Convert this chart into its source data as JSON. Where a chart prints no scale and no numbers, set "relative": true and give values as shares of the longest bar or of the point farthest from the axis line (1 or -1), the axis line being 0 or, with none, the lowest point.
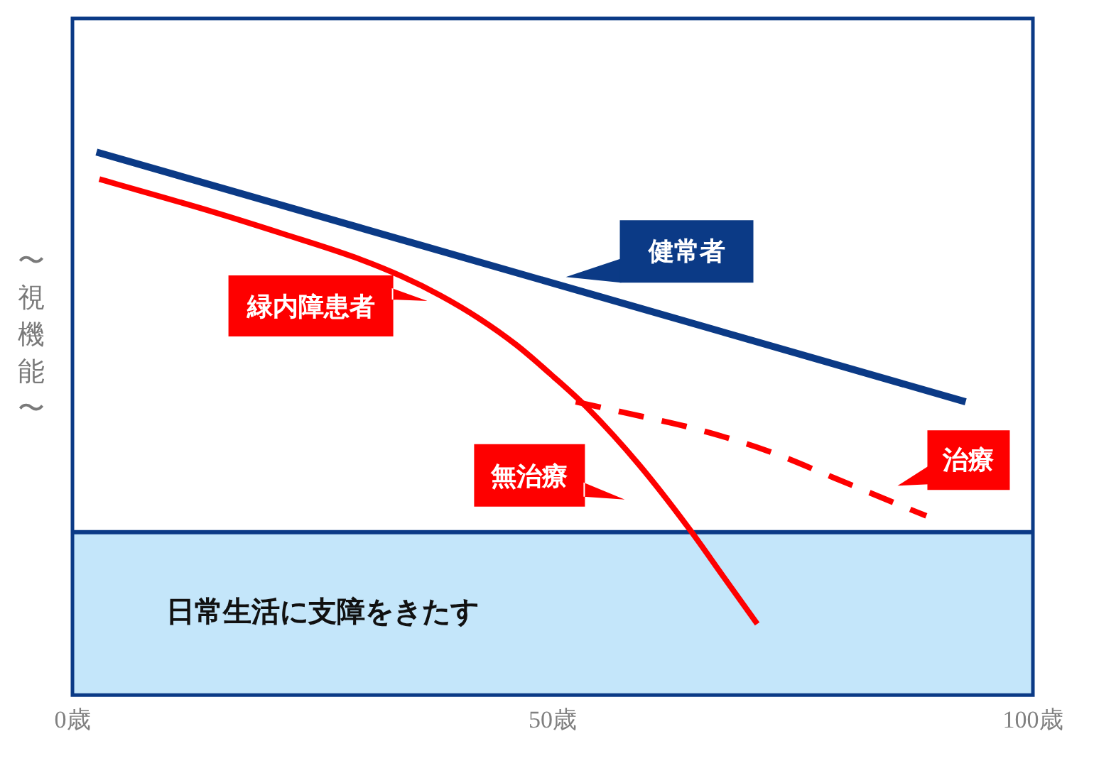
{
  "chart_data": {
    "type": "line",
    "ylabel": "〜視機能〜",
    "relative": true,
    "xlim": [
      0,
      100
    ],
    "xticks": [
      {
        "value": 0,
        "label": "0歳"
      },
      {
        "value": 50,
        "label": "50歳"
      },
      {
        "value": 100,
        "label": "100歳"
      }
    ],
    "series": [
      {
        "name": "健常者",
        "color": "#0b3a86",
        "x": [
          2.5,
          93.0
        ],
        "values": [
          1,
          0.54
        ]
      },
      {
        "name": "緑内障患者",
        "color": "#fe0000",
        "x": [
          2.8,
          14.6,
          22.0,
          29.4,
          34.3,
          38.3,
          42.3,
          46.2,
          50.1,
          53.6,
          59.0,
          64.1,
          67.9,
          71.3
        ],
        "values": [
          0.95,
          0.89,
          0.849,
          0.806,
          0.771,
          0.736,
          0.694,
          0.645,
          0.586,
          0.529,
          0.424,
          0.309,
          0.215,
          0.131
        ]
      },
      {
        "name": "治療",
        "color": "#fe0000",
        "line_style": "dashed",
        "x": [
          52.4,
          57.5,
          64.9,
          72.3,
          79.3,
          86.1,
          88.9
        ],
        "values": [
          0.54,
          0.52,
          0.49,
          0.45,
          0.4,
          0.35,
          0.33
        ]
      }
    ],
    "bands": [
      {
        "axis": "y",
        "from": 0,
        "to": 0.3,
        "label": "日常生活に支障をきたす",
        "color": "#c4e6fa"
      }
    ],
    "ref_lines": [
      {
        "axis": "y",
        "value": 0.3,
        "color": "#0b3a86"
      }
    ],
    "annotations": [
      "無治療"
    ]
  }
}
